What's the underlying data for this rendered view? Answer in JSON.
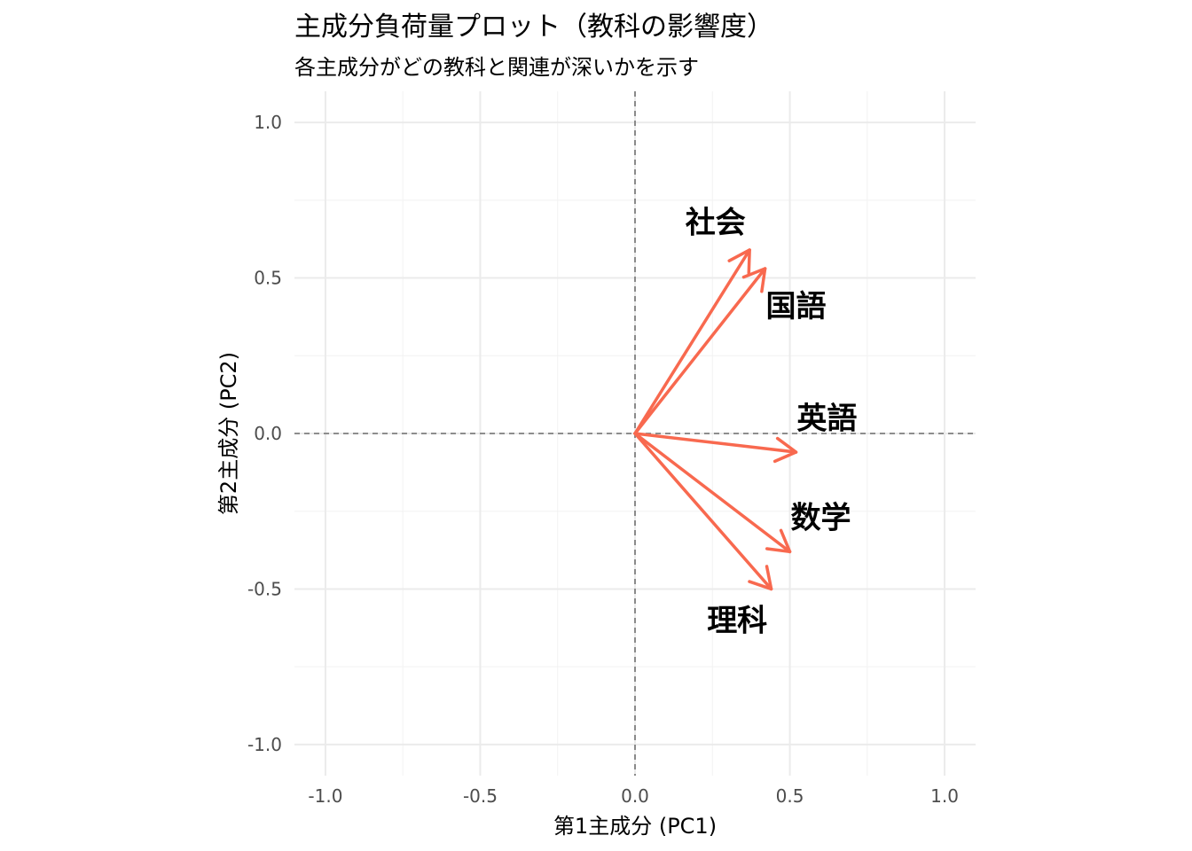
{
  "chart_data": {
    "type": "scatter",
    "subtype": "biplot-loadings",
    "title": "主成分負荷量プロット（教科の影響度）",
    "subtitle": "各主成分がどの教科と関連が深いかを示す",
    "xlabel": "第1主成分 (PC1)",
    "ylabel": "第2主成分 (PC2)",
    "xlim": [
      -1.1,
      1.1
    ],
    "ylim": [
      -1.1,
      1.1
    ],
    "xticks": [
      -1.0,
      -0.5,
      0.0,
      0.5,
      1.0
    ],
    "yticks": [
      -1.0,
      -0.5,
      0.0,
      0.5,
      1.0
    ],
    "tick_labels": [
      "-1.0",
      "-0.5",
      "0.0",
      "0.5",
      "1.0"
    ],
    "grid": true,
    "reference_lines": {
      "x": 0,
      "y": 0,
      "style": "dashed"
    },
    "arrow_color": "#F8694F",
    "loadings": [
      {
        "label": "社会",
        "x": 0.37,
        "y": 0.59,
        "label_x": 0.26,
        "label_y": 0.68
      },
      {
        "label": "国語",
        "x": 0.42,
        "y": 0.53,
        "label_x": 0.52,
        "label_y": 0.41
      },
      {
        "label": "英語",
        "x": 0.52,
        "y": -0.06,
        "label_x": 0.62,
        "label_y": 0.05
      },
      {
        "label": "数学",
        "x": 0.5,
        "y": -0.38,
        "label_x": 0.6,
        "label_y": -0.27
      },
      {
        "label": "理科",
        "x": 0.44,
        "y": -0.5,
        "label_x": 0.33,
        "label_y": -0.6
      }
    ]
  }
}
